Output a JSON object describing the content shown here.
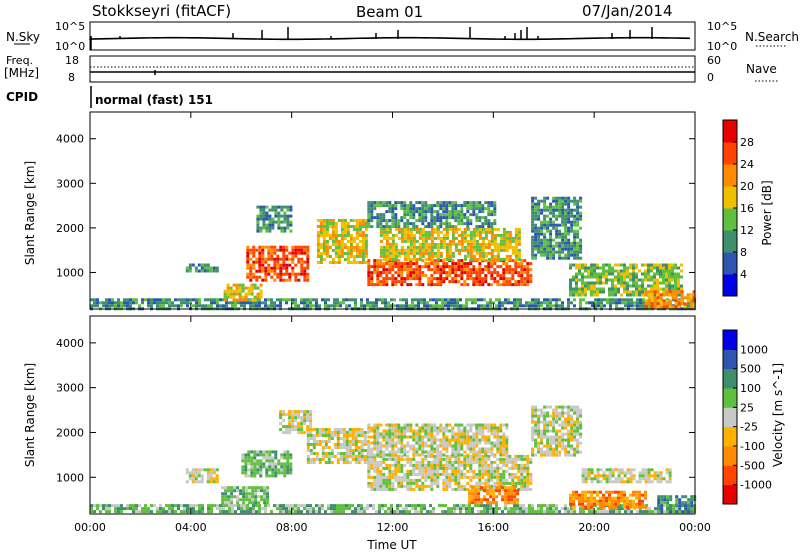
{
  "header": {
    "station": "Stokkseyri (fitACF)",
    "beam": "Beam 01",
    "date": "07/Jan/2014"
  },
  "strips": {
    "noise": {
      "left_label": "N.Sky",
      "right_label": "N.Search",
      "left_ticks": [
        "10^5",
        "10^0"
      ],
      "right_ticks": [
        "10^5",
        "10^0"
      ]
    },
    "freq": {
      "left_label": "Freq.",
      "left_unit": "[MHz]",
      "left_ticks": [
        "18",
        "8"
      ],
      "right_label": "Nave",
      "right_ticks": [
        "60",
        "0"
      ]
    },
    "cpid": {
      "label": "CPID",
      "program": "normal (fast) 151"
    }
  },
  "colors": {
    "power": [
      "#0000e6",
      "#2c57b0",
      "#3f8f6e",
      "#5fbf3f",
      "#f0c000",
      "#ff8c00",
      "#ff4400",
      "#e60000"
    ],
    "velocity": [
      "#e60000",
      "#ff4400",
      "#ff8c00",
      "#ffb000",
      "#c8c8c8",
      "#5fbf3f",
      "#3f8f6e",
      "#2c57b0",
      "#0000e6"
    ]
  },
  "chart_data": [
    {
      "type": "heatmap",
      "panel": "power",
      "xlabel": "",
      "ylabel": "Slant Range [km]",
      "x_ticks": [
        "00:00",
        "04:00",
        "08:00",
        "12:00",
        "16:00",
        "20:00",
        "00:00"
      ],
      "y_ticks": [
        1000,
        2000,
        3000,
        4000
      ],
      "ylim": [
        180,
        4600
      ],
      "colorbar_label": "Power [dB]",
      "colorbar_ticks": [
        4,
        8,
        12,
        16,
        20,
        24,
        28
      ],
      "regions": [
        {
          "t": [
            0.0,
            24.0
          ],
          "r": [
            200,
            420
          ],
          "level": 2
        },
        {
          "t": [
            3.8,
            5.0
          ],
          "r": [
            1000,
            1200
          ],
          "level": 2
        },
        {
          "t": [
            5.3,
            6.8
          ],
          "r": [
            400,
            750
          ],
          "level": 4
        },
        {
          "t": [
            6.2,
            8.6
          ],
          "r": [
            800,
            1600
          ],
          "level": 6
        },
        {
          "t": [
            6.6,
            8.0
          ],
          "r": [
            1900,
            2500
          ],
          "level": 2
        },
        {
          "t": [
            9.0,
            11.0
          ],
          "r": [
            1200,
            2200
          ],
          "level": 4
        },
        {
          "t": [
            11.0,
            16.0
          ],
          "r": [
            2000,
            2600
          ],
          "level": 2
        },
        {
          "t": [
            11.0,
            17.5
          ],
          "r": [
            750,
            1300
          ],
          "level": 6
        },
        {
          "t": [
            11.5,
            17.0
          ],
          "r": [
            1300,
            2000
          ],
          "level": 4
        },
        {
          "t": [
            17.5,
            19.5
          ],
          "r": [
            1300,
            2700
          ],
          "level": 2
        },
        {
          "t": [
            19.0,
            23.5
          ],
          "r": [
            500,
            1200
          ],
          "level": 3
        },
        {
          "t": [
            22.0,
            24.0
          ],
          "r": [
            250,
            600
          ],
          "level": 5
        }
      ]
    },
    {
      "type": "heatmap",
      "panel": "velocity",
      "xlabel": "Time UT",
      "ylabel": "Slant Range [km]",
      "x_ticks": [
        "00:00",
        "04:00",
        "08:00",
        "12:00",
        "16:00",
        "20:00",
        "00:00"
      ],
      "y_ticks": [
        1000,
        2000,
        3000,
        4000
      ],
      "ylim": [
        180,
        4600
      ],
      "colorbar_label": "Velocity [m s^-1]",
      "colorbar_ticks": [
        "1000",
        "500",
        "100",
        "25",
        "-25",
        "-100",
        "-500",
        "-1000"
      ],
      "regions": [
        {
          "t": [
            0.0,
            24.0
          ],
          "r": [
            200,
            400
          ],
          "level": 5
        },
        {
          "t": [
            3.8,
            5.0
          ],
          "r": [
            900,
            1200
          ],
          "level": 4
        },
        {
          "t": [
            5.2,
            7.0
          ],
          "r": [
            400,
            800
          ],
          "level": 5
        },
        {
          "t": [
            6.0,
            8.0
          ],
          "r": [
            1000,
            1600
          ],
          "level": 5
        },
        {
          "t": [
            7.5,
            8.7
          ],
          "r": [
            2000,
            2500
          ],
          "level": 4
        },
        {
          "t": [
            8.6,
            11.0
          ],
          "r": [
            1300,
            2100
          ],
          "level": 4
        },
        {
          "t": [
            11.0,
            17.5
          ],
          "r": [
            700,
            1500
          ],
          "level": 4
        },
        {
          "t": [
            11.0,
            16.5
          ],
          "r": [
            1500,
            2200
          ],
          "level": 4
        },
        {
          "t": [
            15.0,
            17.0
          ],
          "r": [
            400,
            800
          ],
          "level": 2
        },
        {
          "t": [
            17.5,
            19.5
          ],
          "r": [
            1500,
            2600
          ],
          "level": 4
        },
        {
          "t": [
            19.0,
            22.0
          ],
          "r": [
            300,
            700
          ],
          "level": 2
        },
        {
          "t": [
            19.5,
            23.0
          ],
          "r": [
            900,
            1200
          ],
          "level": 4
        },
        {
          "t": [
            22.5,
            24.0
          ],
          "r": [
            200,
            600
          ],
          "level": 6
        }
      ]
    }
  ]
}
